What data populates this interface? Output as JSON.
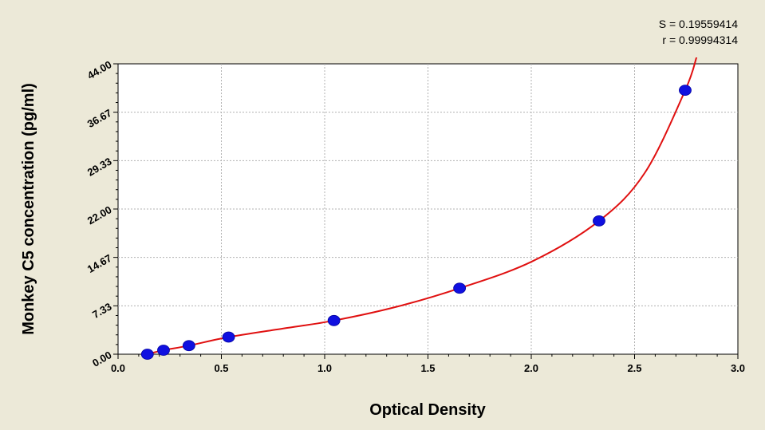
{
  "chart_data": {
    "type": "scatter",
    "title": "",
    "xlabel": "Optical Density",
    "ylabel": "Monkey C5 concentration (pg/ml)",
    "xlim": [
      0.0,
      3.0
    ],
    "ylim": [
      0.0,
      44.0
    ],
    "x_ticks": [
      "0.0",
      "0.5",
      "1.0",
      "1.5",
      "2.0",
      "2.5",
      "3.0"
    ],
    "y_ticks": [
      "0.00",
      "7.33",
      "14.67",
      "22.00",
      "29.33",
      "36.67",
      "44.00"
    ],
    "grid": true,
    "annotations": [
      "S = 0.19559414",
      "r = 0.99994314"
    ],
    "colors": {
      "points": "#1010e0",
      "curve": "#e01010",
      "background": "#ece9d8",
      "plot": "#ffffff"
    },
    "points": {
      "x": [
        0.142,
        0.22,
        0.343,
        0.535,
        1.045,
        1.653,
        2.328,
        2.745
      ],
      "y": [
        0.0,
        0.6,
        1.3,
        2.6,
        5.1,
        10.0,
        20.2,
        40.0
      ]
    },
    "curve": {
      "x": [
        0.12,
        0.142,
        0.22,
        0.343,
        0.535,
        0.8,
        1.045,
        1.35,
        1.653,
        2.0,
        2.328,
        2.55,
        2.745,
        2.8
      ],
      "y": [
        -0.2,
        0.0,
        0.6,
        1.3,
        2.6,
        3.9,
        5.1,
        7.2,
        10.0,
        14.0,
        20.2,
        27.5,
        40.0,
        45.0
      ]
    }
  }
}
